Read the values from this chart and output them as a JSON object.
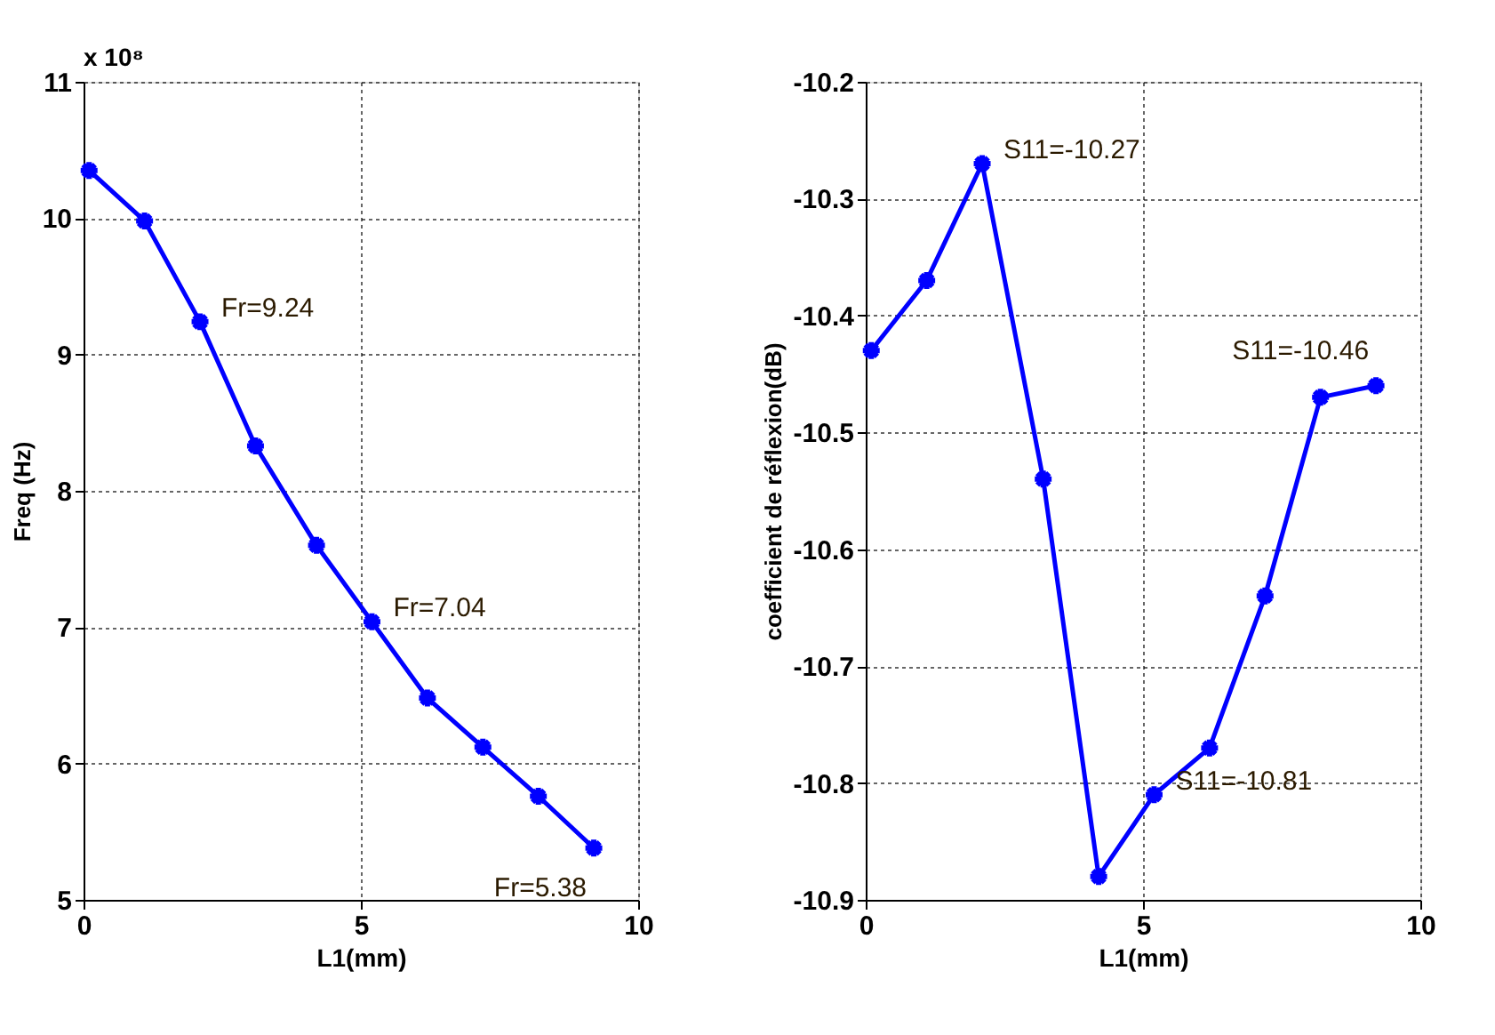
{
  "chart_data": [
    {
      "type": "line",
      "xlabel": "L1(mm)",
      "ylabel": "Freq (Hz)",
      "x": [
        0.1,
        1.1,
        2.1,
        3.1,
        4.2,
        5.2,
        6.2,
        7.2,
        8.2,
        9.2
      ],
      "series": [
        {
          "color": "#0000ff",
          "values": [
            10.35,
            9.98,
            9.24,
            8.33,
            7.6,
            7.04,
            6.48,
            6.12,
            5.76,
            5.38
          ]
        }
      ],
      "xlim": [
        0,
        10
      ],
      "xticks": [
        0,
        5,
        10
      ],
      "ylim": [
        5,
        11
      ],
      "yticks": [
        5,
        6,
        7,
        8,
        9,
        10,
        11
      ],
      "grid": true,
      "marker": "cross",
      "line_style": "solid",
      "annotations": [
        "x 10⁸",
        {
          "text": "Fr=9.24",
          "x": 2.1,
          "y": 9.24
        },
        {
          "text": "Fr=7.04",
          "x": 5.2,
          "y": 7.04
        },
        {
          "text": "Fr=5.38",
          "x": 9.2,
          "y": 5.38
        }
      ]
    },
    {
      "type": "line",
      "xlabel": "L1(mm)",
      "ylabel": "coefficient de réflexion(dB)",
      "x": [
        0.1,
        1.1,
        2.1,
        3.2,
        4.2,
        5.2,
        6.2,
        7.2,
        8.2,
        9.2
      ],
      "series": [
        {
          "color": "#0000ff",
          "values": [
            -10.43,
            -10.37,
            -10.27,
            -10.54,
            -10.88,
            -10.81,
            -10.77,
            -10.64,
            -10.47,
            -10.46
          ]
        }
      ],
      "xlim": [
        0,
        10
      ],
      "xticks": [
        0,
        5,
        10
      ],
      "ylim": [
        -10.9,
        -10.2
      ],
      "yticks": [
        -10.9,
        -10.8,
        -10.7,
        -10.6,
        -10.5,
        -10.4,
        -10.3,
        -10.2
      ],
      "grid": true,
      "marker": "cross",
      "line_style": "solid",
      "annotations": [
        {
          "text": "S11=-10.27",
          "x": 2.1,
          "y": -10.27
        },
        {
          "text": "S11=-10.46",
          "x": 9.2,
          "y": -10.46
        },
        {
          "text": "S11=-10.81",
          "x": 5.2,
          "y": -10.81
        }
      ]
    }
  ]
}
